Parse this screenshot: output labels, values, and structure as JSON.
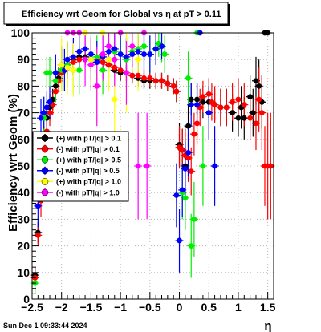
{
  "title": "Efficiency wrt Geom for Global vs   η   at pT > 0.11",
  "date_stamp": "Sun Dec  1 09:33:44 2024",
  "chart_data": {
    "type": "scatter",
    "title": "Efficiency wrt Geom for Global vs   η   at pT > 0.11",
    "xlabel": "η",
    "ylabel": "Efficiency wrt Geom (%)",
    "xlim": [
      -2.5,
      1.6
    ],
    "ylim": [
      0,
      100
    ],
    "xticks": [
      -2.5,
      -2,
      -1.5,
      -1,
      -0.5,
      0,
      0.5,
      1,
      1.5
    ],
    "xtick_labels": [
      "−2.5",
      "−2",
      "−1.5",
      "−1",
      "−0.5",
      "0",
      "0.5",
      "1",
      "1.5"
    ],
    "yticks": [
      0,
      10,
      20,
      30,
      40,
      50,
      60,
      70,
      80,
      90,
      100
    ],
    "ytick_labels": [
      "0",
      "10",
      "20",
      "30",
      "40",
      "50",
      "60",
      "70",
      "80",
      "90",
      "100"
    ],
    "grid": true,
    "legend_position": "left-middle",
    "series": [
      {
        "name": "(+) with pT/|q| > 0.1",
        "color": "#000000",
        "marker": "circle",
        "points": [
          [
            -2.45,
            9,
            3
          ],
          [
            -2.4,
            25,
            4
          ],
          [
            -2.35,
            45,
            6
          ],
          [
            -2.3,
            60,
            5
          ],
          [
            -2.25,
            68,
            5
          ],
          [
            -2.2,
            72,
            5
          ],
          [
            -2.15,
            75,
            4
          ],
          [
            -2.1,
            80,
            4
          ],
          [
            -2.05,
            83,
            4
          ],
          [
            -2.0,
            85,
            3
          ],
          [
            -1.9,
            88,
            3
          ],
          [
            -1.8,
            90,
            3
          ],
          [
            -1.7,
            91,
            3
          ],
          [
            -1.6,
            91,
            3
          ],
          [
            -1.5,
            90,
            3
          ],
          [
            -1.4,
            89,
            3
          ],
          [
            -1.3,
            89,
            3
          ],
          [
            -1.2,
            88,
            3
          ],
          [
            -1.1,
            86,
            3
          ],
          [
            -1.0,
            85,
            3
          ],
          [
            -0.9,
            85,
            3
          ],
          [
            -0.8,
            84,
            3
          ],
          [
            -0.7,
            83,
            3
          ],
          [
            -0.6,
            82,
            3
          ],
          [
            -0.5,
            82,
            3
          ],
          [
            -0.4,
            82,
            3
          ],
          [
            -0.3,
            82,
            3
          ],
          [
            -0.2,
            81,
            3
          ],
          [
            -0.1,
            80,
            3
          ],
          [
            -0.05,
            78,
            4
          ],
          [
            0.0,
            58,
            8
          ],
          [
            0.05,
            56,
            8
          ],
          [
            0.1,
            50,
            10
          ],
          [
            0.15,
            65,
            8
          ],
          [
            0.2,
            75,
            6
          ],
          [
            0.3,
            75,
            6
          ],
          [
            0.4,
            74,
            6
          ],
          [
            0.5,
            74,
            6
          ],
          [
            0.6,
            73,
            6
          ],
          [
            0.7,
            72,
            7
          ],
          [
            0.8,
            72,
            7
          ],
          [
            0.9,
            70,
            7
          ],
          [
            1.0,
            68,
            7
          ],
          [
            1.05,
            72,
            8
          ],
          [
            1.1,
            68,
            8
          ],
          [
            1.2,
            76,
            8
          ],
          [
            1.25,
            70,
            9
          ],
          [
            1.3,
            82,
            9
          ],
          [
            1.35,
            80,
            10
          ],
          [
            1.4,
            74,
            10
          ],
          [
            1.45,
            100,
            0
          ],
          [
            1.5,
            100,
            0
          ]
        ]
      },
      {
        "name": "(-) with pT/|q| > 0.1",
        "color": "#ff0000",
        "marker": "circle",
        "points": [
          [
            -2.45,
            8,
            3
          ],
          [
            -2.4,
            24,
            4
          ],
          [
            -2.35,
            37,
            6
          ],
          [
            -2.3,
            55,
            5
          ],
          [
            -2.25,
            63,
            5
          ],
          [
            -2.2,
            70,
            5
          ],
          [
            -2.15,
            73,
            4
          ],
          [
            -2.1,
            78,
            4
          ],
          [
            -2.05,
            82,
            4
          ],
          [
            -2.0,
            85,
            3
          ],
          [
            -1.9,
            87,
            3
          ],
          [
            -1.8,
            89,
            3
          ],
          [
            -1.7,
            90,
            3
          ],
          [
            -1.6,
            90,
            3
          ],
          [
            -1.5,
            90,
            3
          ],
          [
            -1.4,
            90,
            3
          ],
          [
            -1.3,
            89,
            3
          ],
          [
            -1.2,
            88,
            3
          ],
          [
            -1.1,
            87,
            3
          ],
          [
            -1.0,
            86,
            3
          ],
          [
            -0.9,
            85,
            3
          ],
          [
            -0.8,
            84,
            3
          ],
          [
            -0.7,
            84,
            3
          ],
          [
            -0.6,
            83,
            3
          ],
          [
            -0.5,
            83,
            3
          ],
          [
            -0.4,
            82,
            3
          ],
          [
            -0.3,
            82,
            3
          ],
          [
            -0.2,
            81,
            3
          ],
          [
            -0.1,
            80,
            3
          ],
          [
            -0.05,
            78,
            4
          ],
          [
            0.0,
            57,
            8
          ],
          [
            0.05,
            56,
            8
          ],
          [
            0.1,
            54,
            10
          ],
          [
            0.15,
            53,
            9
          ],
          [
            0.2,
            48,
            9
          ],
          [
            0.25,
            62,
            8
          ],
          [
            0.3,
            66,
            8
          ],
          [
            0.35,
            72,
            7
          ],
          [
            0.4,
            76,
            6
          ],
          [
            0.5,
            77,
            6
          ],
          [
            0.55,
            74,
            7
          ],
          [
            0.6,
            73,
            7
          ],
          [
            0.7,
            72,
            7
          ],
          [
            0.8,
            72,
            7
          ],
          [
            0.9,
            74,
            7
          ],
          [
            1.0,
            75,
            8
          ],
          [
            1.1,
            73,
            8
          ],
          [
            1.2,
            68,
            8
          ],
          [
            1.3,
            66,
            10
          ],
          [
            1.35,
            75,
            12
          ],
          [
            1.4,
            70,
            14
          ],
          [
            1.45,
            50,
            15
          ],
          [
            1.5,
            50,
            20
          ],
          [
            1.55,
            50,
            20
          ]
        ]
      },
      {
        "name": "(+) with pT/|q| > 0.5",
        "color": "#00ee00",
        "marker": "circle",
        "points": [
          [
            -2.45,
            6,
            4
          ],
          [
            -2.3,
            68,
            8
          ],
          [
            -2.25,
            85,
            6
          ],
          [
            -2.2,
            85,
            6
          ],
          [
            -2.1,
            82,
            8
          ],
          [
            -2.0,
            86,
            8
          ],
          [
            -1.9,
            88,
            8
          ],
          [
            -1.8,
            86,
            9
          ],
          [
            -1.7,
            86,
            9
          ],
          [
            -1.5,
            90,
            8
          ],
          [
            -1.4,
            91,
            8
          ],
          [
            -1.3,
            86,
            9
          ],
          [
            -1.2,
            90,
            9
          ],
          [
            -1.1,
            93,
            8
          ],
          [
            -1.0,
            92,
            8
          ],
          [
            -0.9,
            90,
            8
          ],
          [
            -0.8,
            93,
            7
          ],
          [
            -0.7,
            94,
            6
          ],
          [
            -0.6,
            95,
            5
          ],
          [
            -0.5,
            92,
            7
          ],
          [
            -0.4,
            94,
            6
          ],
          [
            -0.35,
            96,
            5
          ],
          [
            -0.3,
            95,
            6
          ],
          [
            -0.25,
            92,
            7
          ],
          [
            0.05,
            40,
            10
          ],
          [
            0.1,
            38,
            12
          ],
          [
            0.15,
            83,
            10
          ],
          [
            0.2,
            20,
            12
          ],
          [
            0.25,
            30,
            14
          ],
          [
            0.3,
            100,
            0
          ],
          [
            0.4,
            50,
            15
          ]
        ]
      },
      {
        "name": "(-) with pT/|q| > 0.5",
        "color": "#0000ff",
        "marker": "circle",
        "points": [
          [
            -2.4,
            35,
            8
          ],
          [
            -2.35,
            68,
            7
          ],
          [
            -2.3,
            70,
            6
          ],
          [
            -2.25,
            72,
            6
          ],
          [
            -2.2,
            74,
            6
          ],
          [
            -2.1,
            85,
            7
          ],
          [
            -2.0,
            88,
            7
          ],
          [
            -1.95,
            86,
            8
          ],
          [
            -1.9,
            90,
            7
          ],
          [
            -1.8,
            91,
            7
          ],
          [
            -1.7,
            93,
            6
          ],
          [
            -1.6,
            94,
            6
          ],
          [
            -1.5,
            92,
            7
          ],
          [
            -1.4,
            89,
            8
          ],
          [
            -1.3,
            91,
            8
          ],
          [
            -1.2,
            93,
            7
          ],
          [
            -1.1,
            94,
            6
          ],
          [
            -1.0,
            92,
            7
          ],
          [
            -0.9,
            91,
            7
          ],
          [
            -0.8,
            92,
            7
          ],
          [
            -0.7,
            93,
            6
          ],
          [
            -0.6,
            92,
            7
          ],
          [
            -0.5,
            92,
            7
          ],
          [
            -0.4,
            94,
            6
          ],
          [
            -0.3,
            95,
            5
          ],
          [
            -0.05,
            39,
            12
          ],
          [
            0.0,
            22,
            12
          ],
          [
            0.05,
            41,
            10
          ],
          [
            0.1,
            49,
            10
          ],
          [
            0.15,
            55,
            9
          ],
          [
            0.2,
            73,
            8
          ],
          [
            0.3,
            73,
            8
          ],
          [
            0.35,
            100,
            0
          ],
          [
            0.5,
            70,
            10
          ],
          [
            0.6,
            50,
            15
          ]
        ]
      },
      {
        "name": "(+) with pT/|q| > 1.0",
        "color": "#ffff00",
        "marker": "circle",
        "points": [
          [
            -2.0,
            88,
            10
          ],
          [
            -1.9,
            87,
            10
          ],
          [
            -1.8,
            86,
            10
          ],
          [
            -1.7,
            100,
            0
          ],
          [
            -1.6,
            100,
            0
          ],
          [
            -1.5,
            90,
            12
          ],
          [
            -1.4,
            80,
            14
          ],
          [
            -1.3,
            100,
            0
          ],
          [
            -1.2,
            90,
            12
          ],
          [
            -1.1,
            75,
            20
          ],
          [
            -1.0,
            100,
            0
          ],
          [
            -0.9,
            85,
            15
          ],
          [
            -0.8,
            95,
            10
          ],
          [
            -0.7,
            90,
            12
          ]
        ]
      },
      {
        "name": "(-) with pT/|q| > 1.0",
        "color": "#ff00ff",
        "marker": "circle",
        "points": [
          [
            -1.9,
            100,
            0
          ],
          [
            -1.8,
            100,
            0
          ],
          [
            -1.7,
            100,
            0
          ],
          [
            -1.6,
            90,
            10
          ],
          [
            -1.5,
            88,
            10
          ],
          [
            -1.4,
            80,
            15
          ],
          [
            -1.3,
            92,
            10
          ],
          [
            -1.2,
            95,
            8
          ],
          [
            -1.1,
            90,
            10
          ],
          [
            -1.0,
            100,
            0
          ],
          [
            -0.9,
            85,
            12
          ],
          [
            -0.8,
            95,
            8
          ],
          [
            -0.7,
            50,
            20
          ],
          [
            -0.6,
            100,
            0
          ],
          [
            -0.55,
            50,
            20
          ]
        ]
      }
    ]
  }
}
